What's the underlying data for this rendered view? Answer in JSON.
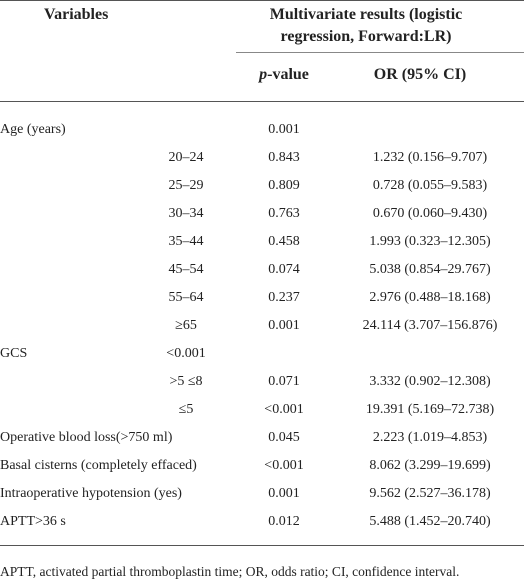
{
  "header": {
    "variables": "Variables",
    "multivariate": "Multivariate results (logistic regression, Forward:LR)",
    "pvalue_italic": "p",
    "pvalue_rest": "-value",
    "or": "OR (95% CI)"
  },
  "table": {
    "rows": [
      [
        "Age (years)",
        null,
        "0.001",
        null
      ],
      [
        null,
        "20–24",
        "0.843",
        "1.232 (0.156–9.707)"
      ],
      [
        null,
        "25–29",
        "0.809",
        "0.728 (0.055–9.583)"
      ],
      [
        null,
        "30–34",
        "0.763",
        "0.670 (0.060–9.430)"
      ],
      [
        null,
        "35–44",
        "0.458",
        "1.993 (0.323–12.305)"
      ],
      [
        null,
        "45–54",
        "0.074",
        "5.038 (0.854–29.767)"
      ],
      [
        null,
        "55–64",
        "0.237",
        "2.976 (0.488–18.168)"
      ],
      [
        null,
        "≥65",
        "0.001",
        "24.114 (3.707–156.876)"
      ],
      [
        "GCS",
        "<0.001",
        null,
        null
      ],
      [
        null,
        ">5 ≤8",
        "0.071",
        "3.332 (0.902–12.308)"
      ],
      [
        null,
        "≤5",
        "<0.001",
        "19.391 (5.169–72.738)"
      ],
      [
        "Operative blood loss(>750 ml)",
        null,
        "0.045",
        "2.223 (1.019–4.853)"
      ],
      [
        "Basal cisterns (completely effaced)",
        null,
        "<0.001",
        "8.062 (3.299–19.699)"
      ],
      [
        "Intraoperative hypotension (yes)",
        null,
        "0.001",
        "9.562 (2.527–36.178)"
      ],
      [
        "APTT>36 s",
        null,
        "0.012",
        "5.488 (1.452–20.740)"
      ]
    ]
  },
  "footnote": "APTT, activated partial thromboplastin time; OR, odds ratio; CI, confidence interval."
}
